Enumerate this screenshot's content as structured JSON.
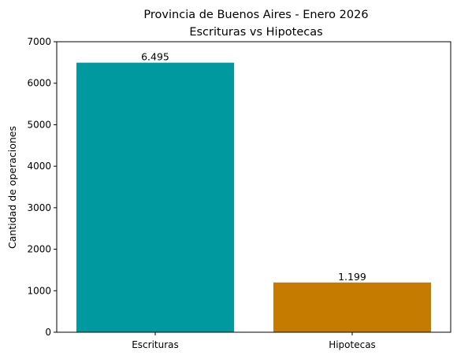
{
  "chart_data": {
    "type": "bar",
    "title": "Provincia de Buenos Aires - Enero 2026",
    "subtitle": "Escrituras vs Hipotecas",
    "xlabel": "",
    "ylabel": "Cantidad de operaciones",
    "ylim": [
      0,
      7000
    ],
    "yticks": [
      0,
      1000,
      2000,
      3000,
      4000,
      5000,
      6000,
      7000
    ],
    "categories": [
      "Escrituras",
      "Hipotecas"
    ],
    "values": [
      6495,
      1199
    ],
    "value_labels": [
      "6.495",
      "1.199"
    ],
    "colors": [
      "#00999f",
      "#c57b00"
    ],
    "grid": false,
    "legend": "none"
  }
}
